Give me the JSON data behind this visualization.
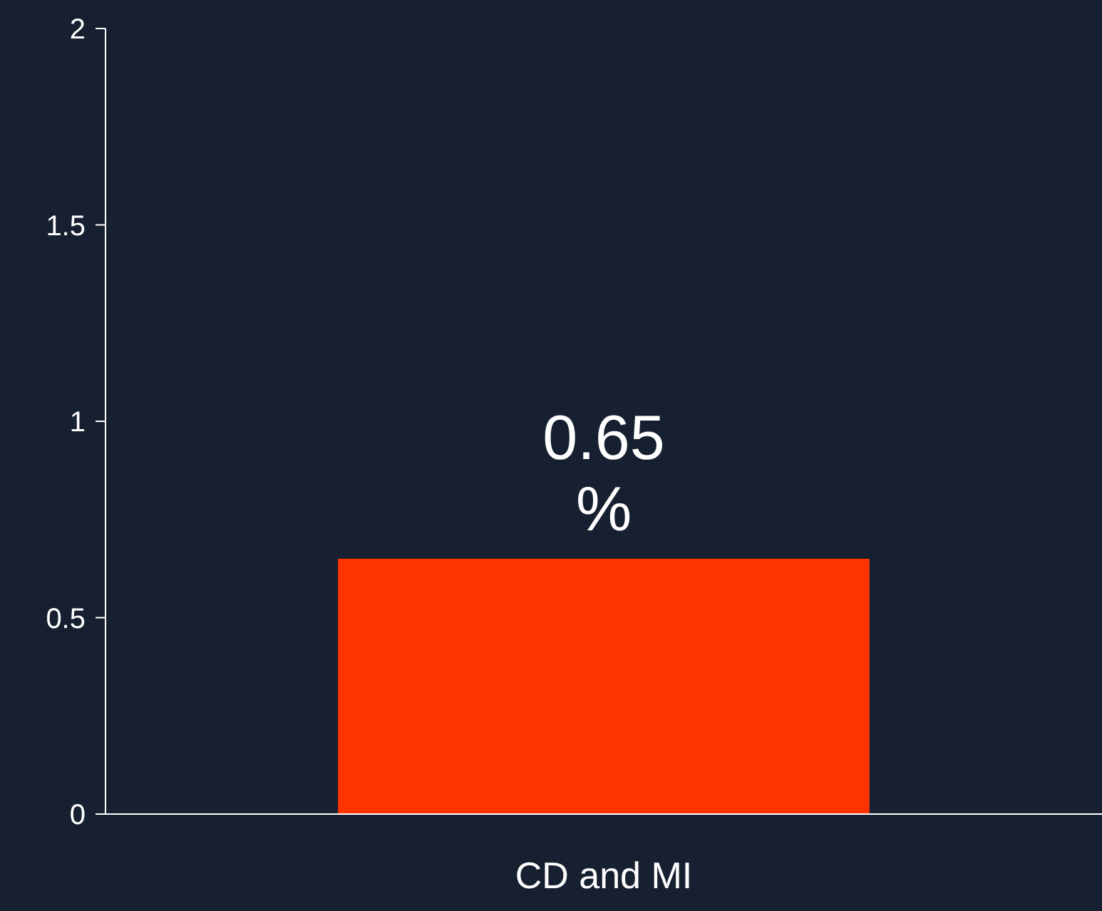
{
  "chart_data": {
    "type": "bar",
    "categories": [
      "CD and MI"
    ],
    "values": [
      0.65
    ],
    "color": "#ff3300",
    "value_labels": [
      "0.65 %"
    ],
    "ylim": [
      0,
      2
    ],
    "yticks": [
      0,
      0.5,
      1,
      1.5,
      2
    ],
    "grid": false
  }
}
